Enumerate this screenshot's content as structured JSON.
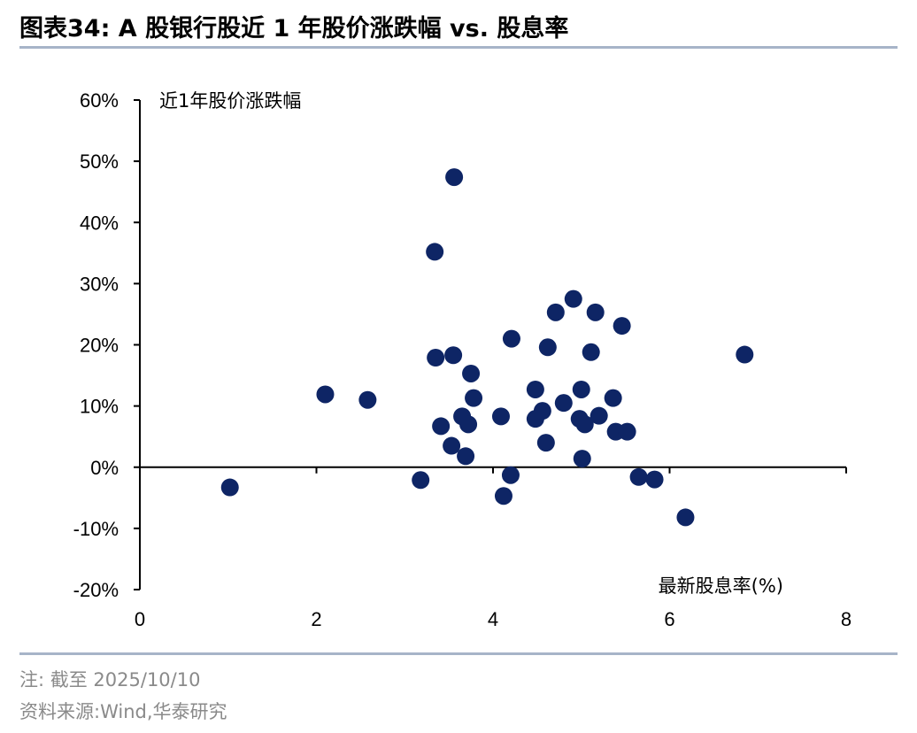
{
  "header": {
    "title": "图表34:  A 股银行股近 1 年股价涨跌幅 vs. 股息率"
  },
  "footer": {
    "note": "注:  截至 2025/10/10",
    "source": "资料来源:Wind,华泰研究"
  },
  "colors": {
    "marker": "#0e2565",
    "axis": "#000000",
    "rule": "#a7b4c8",
    "footer_text": "#8a8a8a"
  },
  "chart_data": {
    "type": "scatter",
    "title": "",
    "xlabel": "最新股息率(%)",
    "ylabel": "近1年股价涨跌幅",
    "xlim": [
      0,
      8
    ],
    "ylim": [
      -20,
      60
    ],
    "x_ticks": [
      0,
      2,
      4,
      6,
      8
    ],
    "x_tick_labels": [
      "0",
      "2",
      "4",
      "6",
      "8"
    ],
    "y_ticks": [
      -20,
      -10,
      0,
      10,
      20,
      30,
      40,
      50,
      60
    ],
    "y_tick_labels": [
      "-20%",
      "-10%",
      "0%",
      "10%",
      "20%",
      "30%",
      "40%",
      "50%",
      "60%"
    ],
    "grid": false,
    "legend": "none",
    "points": [
      {
        "x": 1.02,
        "y": -3.3
      },
      {
        "x": 2.1,
        "y": 11.9
      },
      {
        "x": 2.58,
        "y": 11.0
      },
      {
        "x": 3.18,
        "y": -2.1
      },
      {
        "x": 3.34,
        "y": 35.2
      },
      {
        "x": 3.35,
        "y": 17.9
      },
      {
        "x": 3.41,
        "y": 6.7
      },
      {
        "x": 3.53,
        "y": 3.5
      },
      {
        "x": 3.56,
        "y": 47.4
      },
      {
        "x": 3.55,
        "y": 18.3
      },
      {
        "x": 3.65,
        "y": 8.3
      },
      {
        "x": 3.69,
        "y": 1.8
      },
      {
        "x": 3.72,
        "y": 7.0
      },
      {
        "x": 3.75,
        "y": 15.3
      },
      {
        "x": 3.78,
        "y": 11.3
      },
      {
        "x": 4.09,
        "y": 8.3
      },
      {
        "x": 4.12,
        "y": -4.7
      },
      {
        "x": 4.2,
        "y": -1.3
      },
      {
        "x": 4.21,
        "y": 21.0
      },
      {
        "x": 4.48,
        "y": 12.7
      },
      {
        "x": 4.48,
        "y": 7.9
      },
      {
        "x": 4.56,
        "y": 9.2
      },
      {
        "x": 4.6,
        "y": 4.0
      },
      {
        "x": 4.62,
        "y": 19.6
      },
      {
        "x": 4.71,
        "y": 25.3
      },
      {
        "x": 4.8,
        "y": 10.5
      },
      {
        "x": 4.91,
        "y": 27.5
      },
      {
        "x": 4.98,
        "y": 7.9
      },
      {
        "x": 5.0,
        "y": 12.7
      },
      {
        "x": 5.01,
        "y": 1.4
      },
      {
        "x": 5.04,
        "y": 7.0
      },
      {
        "x": 5.11,
        "y": 18.8
      },
      {
        "x": 5.16,
        "y": 25.3
      },
      {
        "x": 5.2,
        "y": 8.4
      },
      {
        "x": 5.36,
        "y": 11.3
      },
      {
        "x": 5.39,
        "y": 5.8
      },
      {
        "x": 5.46,
        "y": 23.1
      },
      {
        "x": 5.52,
        "y": 5.8
      },
      {
        "x": 5.65,
        "y": -1.6
      },
      {
        "x": 5.83,
        "y": -2.0
      },
      {
        "x": 6.18,
        "y": -8.2
      },
      {
        "x": 6.85,
        "y": 18.4
      }
    ]
  }
}
